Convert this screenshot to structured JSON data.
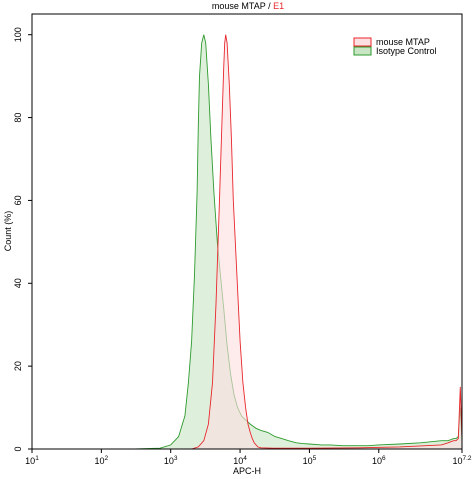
{
  "chart_data": {
    "type": "area",
    "title_parts": [
      {
        "text": "mouse MTAP / ",
        "color": "#000000"
      },
      {
        "text": "E1",
        "color": "#e8262c"
      }
    ],
    "xlabel": "APC-H",
    "ylabel": "Count (%)",
    "x_scale": "log10",
    "xlim": [
      10,
      15848931.9
    ],
    "ylim": [
      0,
      105
    ],
    "x_ticks": [
      {
        "base": "10",
        "exp": "1"
      },
      {
        "base": "10",
        "exp": "2"
      },
      {
        "base": "10",
        "exp": "3"
      },
      {
        "base": "10",
        "exp": "4"
      },
      {
        "base": "10",
        "exp": "5"
      },
      {
        "base": "10",
        "exp": "6"
      },
      {
        "base": "10",
        "exp": "7.2"
      }
    ],
    "y_ticks": [
      "0",
      "20",
      "40",
      "60",
      "80",
      "100"
    ],
    "grid": false,
    "legend_position": "top-right",
    "series": [
      {
        "name": "Isotype Control",
        "stroke": "#2e9a2e",
        "fill": "#c8e6c4",
        "fill_opacity": 0.6,
        "x": [
          300,
          700,
          1000,
          1300,
          1600,
          1800,
          2000,
          2200,
          2400,
          2500,
          2600,
          2800,
          3000,
          3200,
          3500,
          3800,
          4200,
          4700,
          5200,
          5800,
          6500,
          7300,
          8200,
          9200,
          10500,
          12000,
          14000,
          17000,
          20000,
          25000,
          32000,
          40000,
          50000,
          65000,
          80000,
          100000,
          150000,
          200000,
          300000,
          500000,
          700000,
          1000000,
          2000000,
          4000000,
          8000000,
          10000000,
          12000000,
          13000000,
          14000000,
          15000000,
          15800000
        ],
        "y": [
          0,
          0.2,
          1,
          3,
          8,
          16,
          26,
          42,
          62,
          78,
          90,
          98,
          100,
          98,
          88,
          75,
          62,
          50,
          42,
          34,
          25,
          18,
          13,
          10,
          8,
          7,
          6,
          5,
          4.5,
          4,
          3,
          2.5,
          2,
          1.5,
          1.3,
          1.2,
          1,
          1,
          0.8,
          0.8,
          0.8,
          1,
          1.2,
          1.5,
          2,
          2,
          2.5,
          2.5,
          3,
          10,
          2
        ]
      },
      {
        "name": "mouse MTAP",
        "stroke": "#e8262c",
        "fill": "#fde0e1",
        "fill_opacity": 0.6,
        "x": [
          2000,
          2500,
          3000,
          3500,
          4000,
          4500,
          5000,
          5500,
          5800,
          6000,
          6200,
          6500,
          7000,
          7500,
          8000,
          9000,
          10000,
          11000,
          12000,
          13000,
          14000,
          15000,
          16000,
          18000,
          20000,
          30000,
          100000,
          500000,
          2000000,
          8000000,
          10000000,
          12000000,
          13000000,
          14000000,
          15000000,
          15800000
        ],
        "y": [
          0,
          0.5,
          2,
          6,
          16,
          35,
          58,
          80,
          92,
          98,
          100,
          98,
          88,
          75,
          60,
          42,
          26,
          16,
          10,
          6,
          4,
          2.5,
          1.5,
          0.5,
          0.3,
          0.2,
          0.2,
          0.3,
          0.5,
          1,
          1.5,
          2,
          2,
          2.5,
          15,
          3
        ]
      }
    ]
  }
}
